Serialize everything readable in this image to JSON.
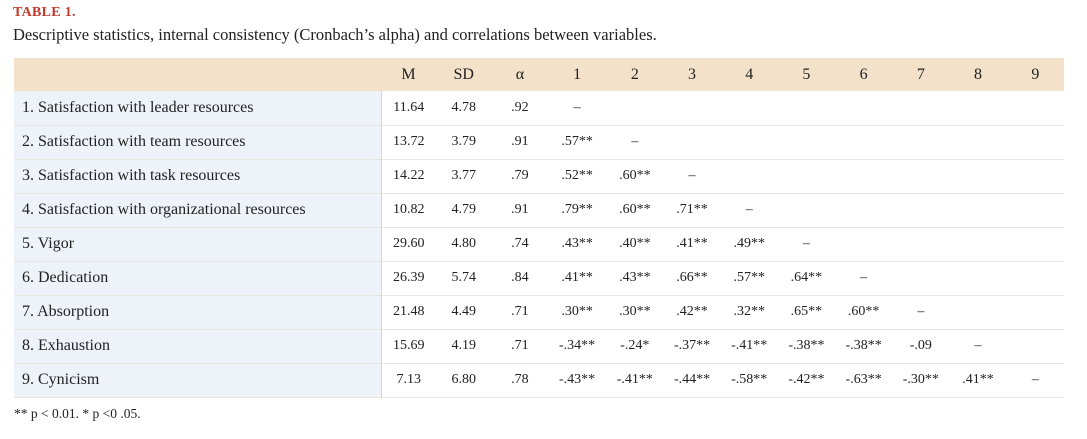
{
  "table_label": "TABLE 1.",
  "caption": "Descriptive statistics, internal consistency (Cronbach’s alpha) and correlations between variables.",
  "columns": [
    "",
    "M",
    "SD",
    "α",
    "1",
    "2",
    "3",
    "4",
    "5",
    "6",
    "7",
    "8",
    "9"
  ],
  "rows": [
    {
      "label": "1. Satisfaction with leader resources",
      "cells": [
        "11.64",
        "4.78",
        ".92",
        "–",
        "",
        "",
        "",
        "",
        "",
        "",
        "",
        ""
      ]
    },
    {
      "label": "2. Satisfaction with team resources",
      "cells": [
        "13.72",
        "3.79",
        ".91",
        ".57**",
        "–",
        "",
        "",
        "",
        "",
        "",
        "",
        ""
      ]
    },
    {
      "label": "3. Satisfaction with task resources",
      "cells": [
        "14.22",
        "3.77",
        ".79",
        ".52**",
        ".60**",
        "–",
        "",
        "",
        "",
        "",
        "",
        ""
      ]
    },
    {
      "label": "4. Satisfaction with organizational resources",
      "cells": [
        "10.82",
        "4.79",
        ".91",
        ".79**",
        ".60**",
        ".71**",
        "–",
        "",
        "",
        "",
        "",
        ""
      ]
    },
    {
      "label": "5. Vigor",
      "cells": [
        "29.60",
        "4.80",
        ".74",
        ".43**",
        ".40**",
        ".41**",
        ".49**",
        "–",
        "",
        "",
        "",
        ""
      ]
    },
    {
      "label": "6. Dedication",
      "cells": [
        "26.39",
        "5.74",
        ".84",
        ".41**",
        ".43**",
        ".66**",
        ".57**",
        ".64**",
        "–",
        "",
        "",
        ""
      ]
    },
    {
      "label": "7. Absorption",
      "cells": [
        "21.48",
        "4.49",
        ".71",
        ".30**",
        ".30**",
        ".42**",
        ".32**",
        ".65**",
        ".60**",
        "–",
        "",
        ""
      ]
    },
    {
      "label": "8. Exhaustion",
      "cells": [
        "15.69",
        "4.19",
        ".71",
        "-.34**",
        "-.24*",
        "-.37**",
        "-.41**",
        "-.38**",
        "-.38**",
        "-.09",
        "–",
        ""
      ]
    },
    {
      "label": "9. Cynicism",
      "cells": [
        "7.13",
        "6.80",
        ".78",
        "-.43**",
        "-.41**",
        "-.44**",
        "-.58**",
        "-.42**",
        "-.63**",
        "-.30**",
        ".41**",
        "–"
      ]
    }
  ],
  "footnote": "** p < 0.01. * p <0 .05."
}
